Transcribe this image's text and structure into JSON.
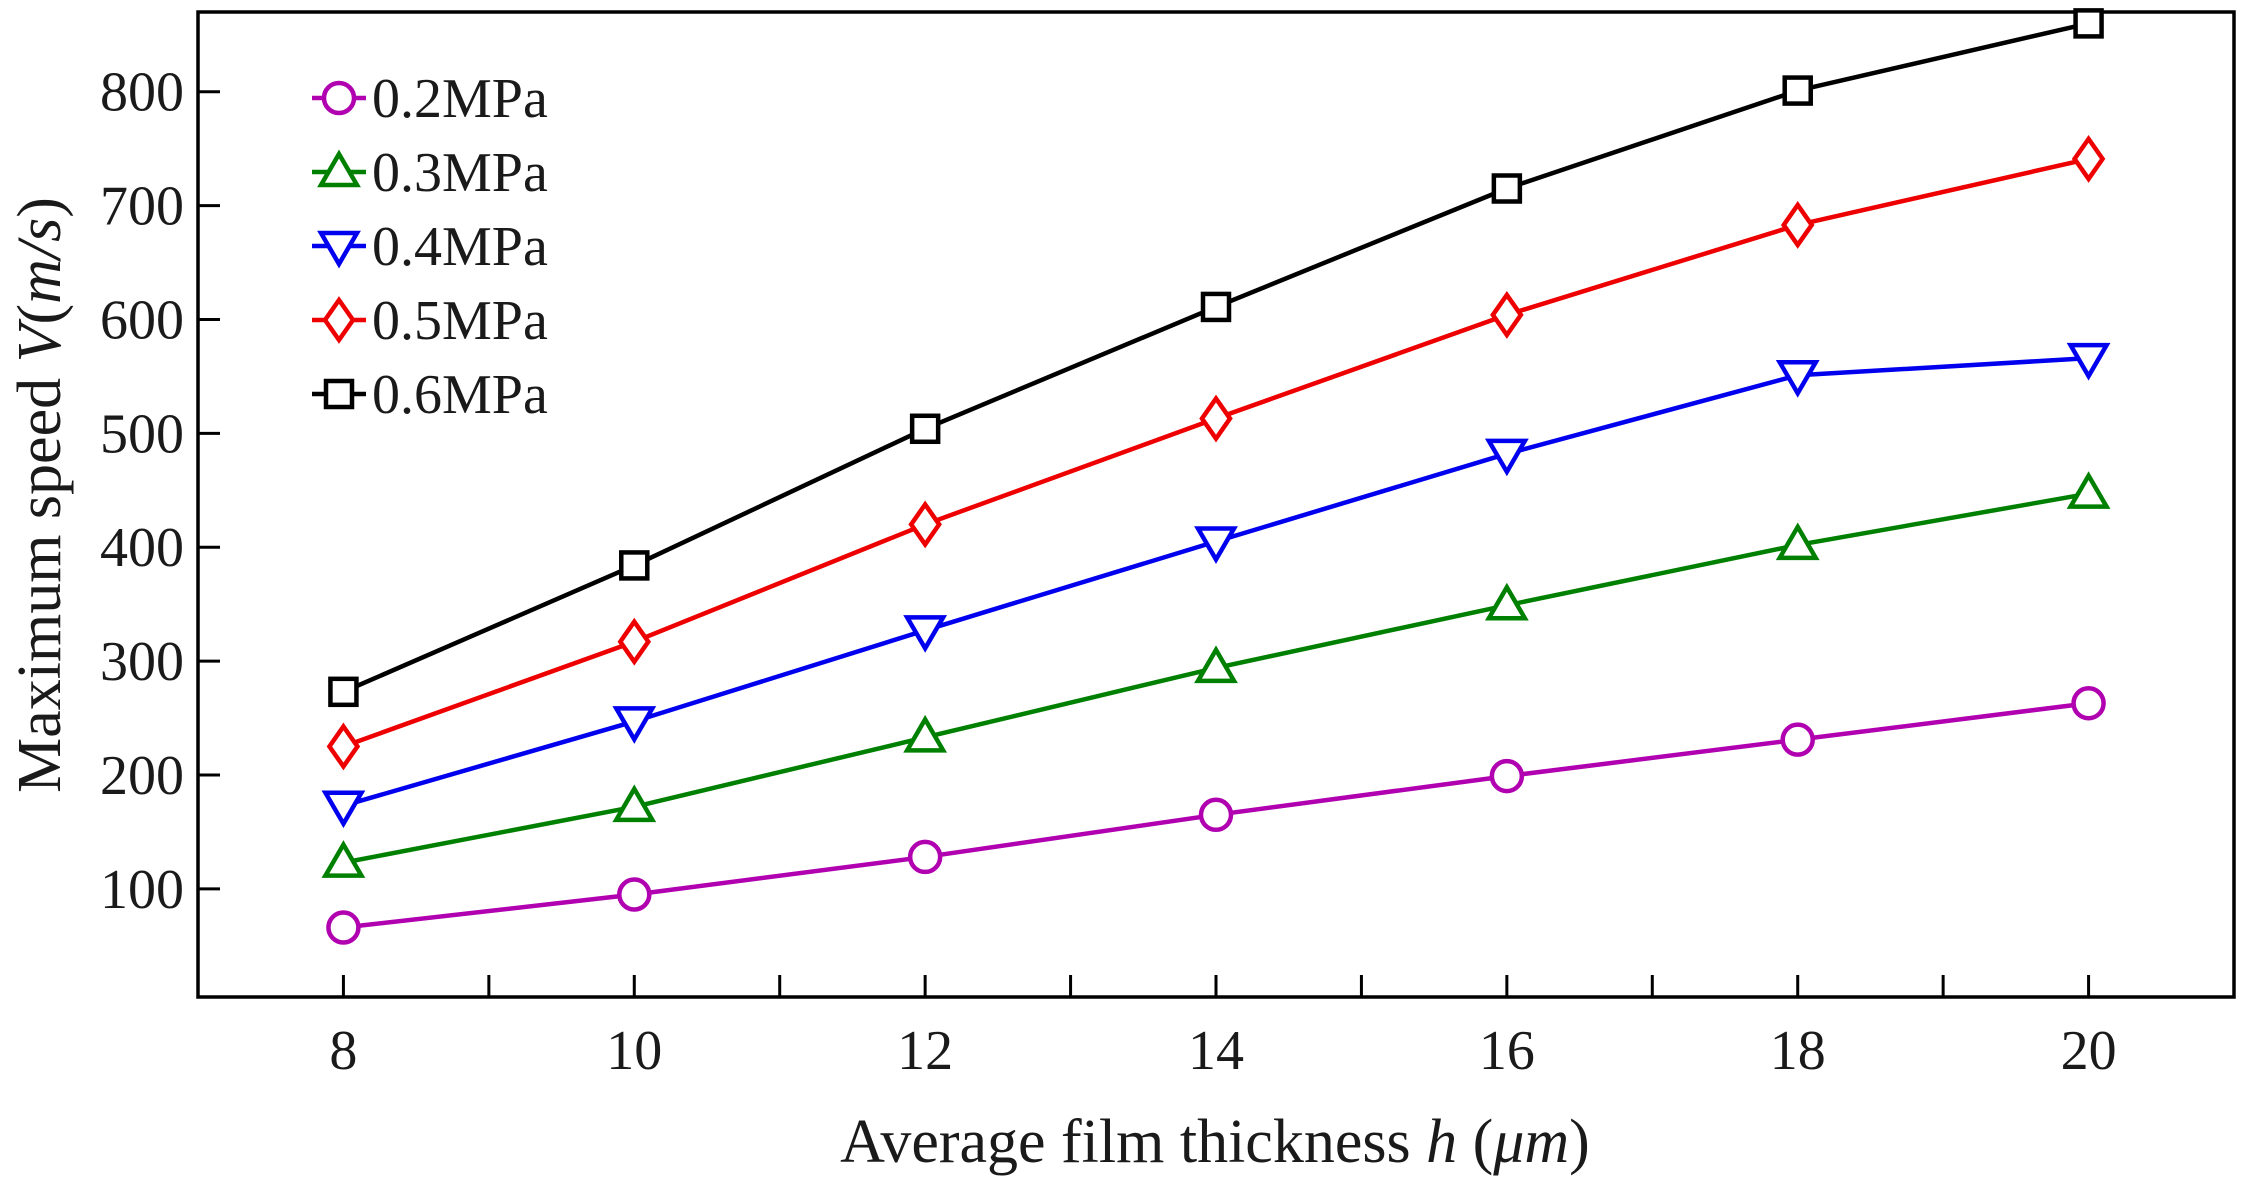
{
  "chart_data": {
    "type": "line",
    "title": "",
    "xlabel": "Average film thickness",
    "xlabel_var": "h",
    "xlabel_unit": "μm",
    "ylabel": "Maximum speed",
    "ylabel_var": "V",
    "ylabel_unit": "m/s",
    "xlim": [
      7,
      21
    ],
    "ylim": [
      5,
      870
    ],
    "x": [
      8,
      10,
      12,
      14,
      16,
      18,
      20
    ],
    "xticks": [
      8,
      10,
      12,
      14,
      16,
      18,
      20
    ],
    "xtick_labels": [
      "8",
      "10",
      "12",
      "14",
      "16",
      "18",
      "20"
    ],
    "xminor": [
      9,
      11,
      13,
      15,
      17,
      19
    ],
    "yticks": [
      100,
      200,
      300,
      400,
      500,
      600,
      700,
      800
    ],
    "ytick_labels": [
      "100",
      "200",
      "300",
      "400",
      "500",
      "600",
      "700",
      "800"
    ],
    "grid": false,
    "legend_position": "top-left",
    "series": [
      {
        "name": "0.2MPa",
        "marker": "circle",
        "color": "#b000b0",
        "values": [
          66,
          95,
          128,
          165,
          199,
          231,
          263
        ]
      },
      {
        "name": "0.3MPa",
        "marker": "triangle-up",
        "color": "#008000",
        "values": [
          123,
          172,
          233,
          294,
          349,
          402,
          447
        ]
      },
      {
        "name": "0.4MPa",
        "marker": "triangle-down",
        "color": "#0000ee",
        "values": [
          173,
          247,
          327,
          405,
          482,
          551,
          566
        ]
      },
      {
        "name": "0.5MPa",
        "marker": "diamond",
        "color": "#ee0000",
        "values": [
          225,
          317,
          420,
          513,
          604,
          683,
          741
        ]
      },
      {
        "name": "0.6MPa",
        "marker": "square",
        "color": "#000000",
        "values": [
          273,
          384,
          504,
          611,
          715,
          801,
          860
        ]
      }
    ]
  }
}
